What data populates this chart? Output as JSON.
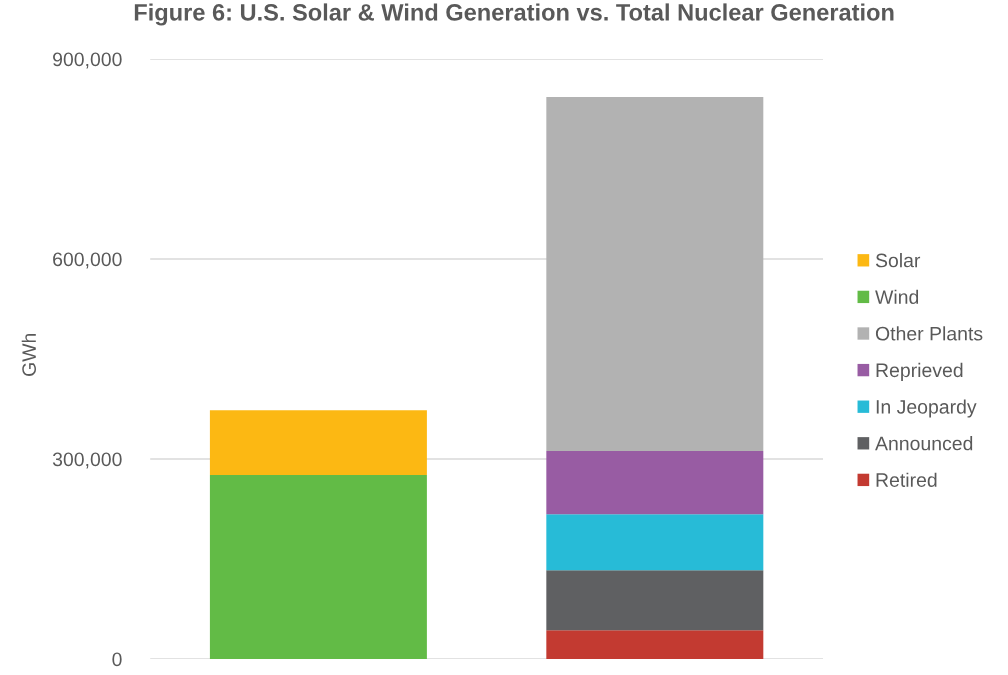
{
  "chart_data": {
    "type": "bar",
    "title": "Figure 6: U.S. Solar & Wind Generation vs. Total Nuclear Generation",
    "ylabel": "GWh",
    "categories": [
      null,
      null
    ],
    "stacked": true,
    "series": [
      {
        "name": "Retired",
        "color": "#c33a31",
        "values": [
          null,
          43000
        ]
      },
      {
        "name": "Announced",
        "color": "#5f6062",
        "values": [
          null,
          90000
        ]
      },
      {
        "name": "In Jeopardy",
        "color": "#27bbd7",
        "values": [
          null,
          84000
        ]
      },
      {
        "name": "Reprieved",
        "color": "#985ca3",
        "values": [
          null,
          95000
        ]
      },
      {
        "name": "Other Plants",
        "color": "#b2b2b2",
        "values": [
          null,
          531000
        ]
      },
      {
        "name": "Wind",
        "color": "#62bb46",
        "values": [
          276000,
          null
        ]
      },
      {
        "name": "Solar",
        "color": "#fcb813",
        "values": [
          97000,
          null
        ]
      }
    ],
    "ylim": [
      0,
      900000
    ],
    "yticks": [
      0,
      {
        "value": 300000,
        "label": "300,000"
      },
      {
        "value": 600000,
        "label": "600,000"
      },
      {
        "value": 900000,
        "label": "900,000"
      }
    ],
    "grid": "y",
    "legend": "right",
    "tick_labels": "y"
  }
}
